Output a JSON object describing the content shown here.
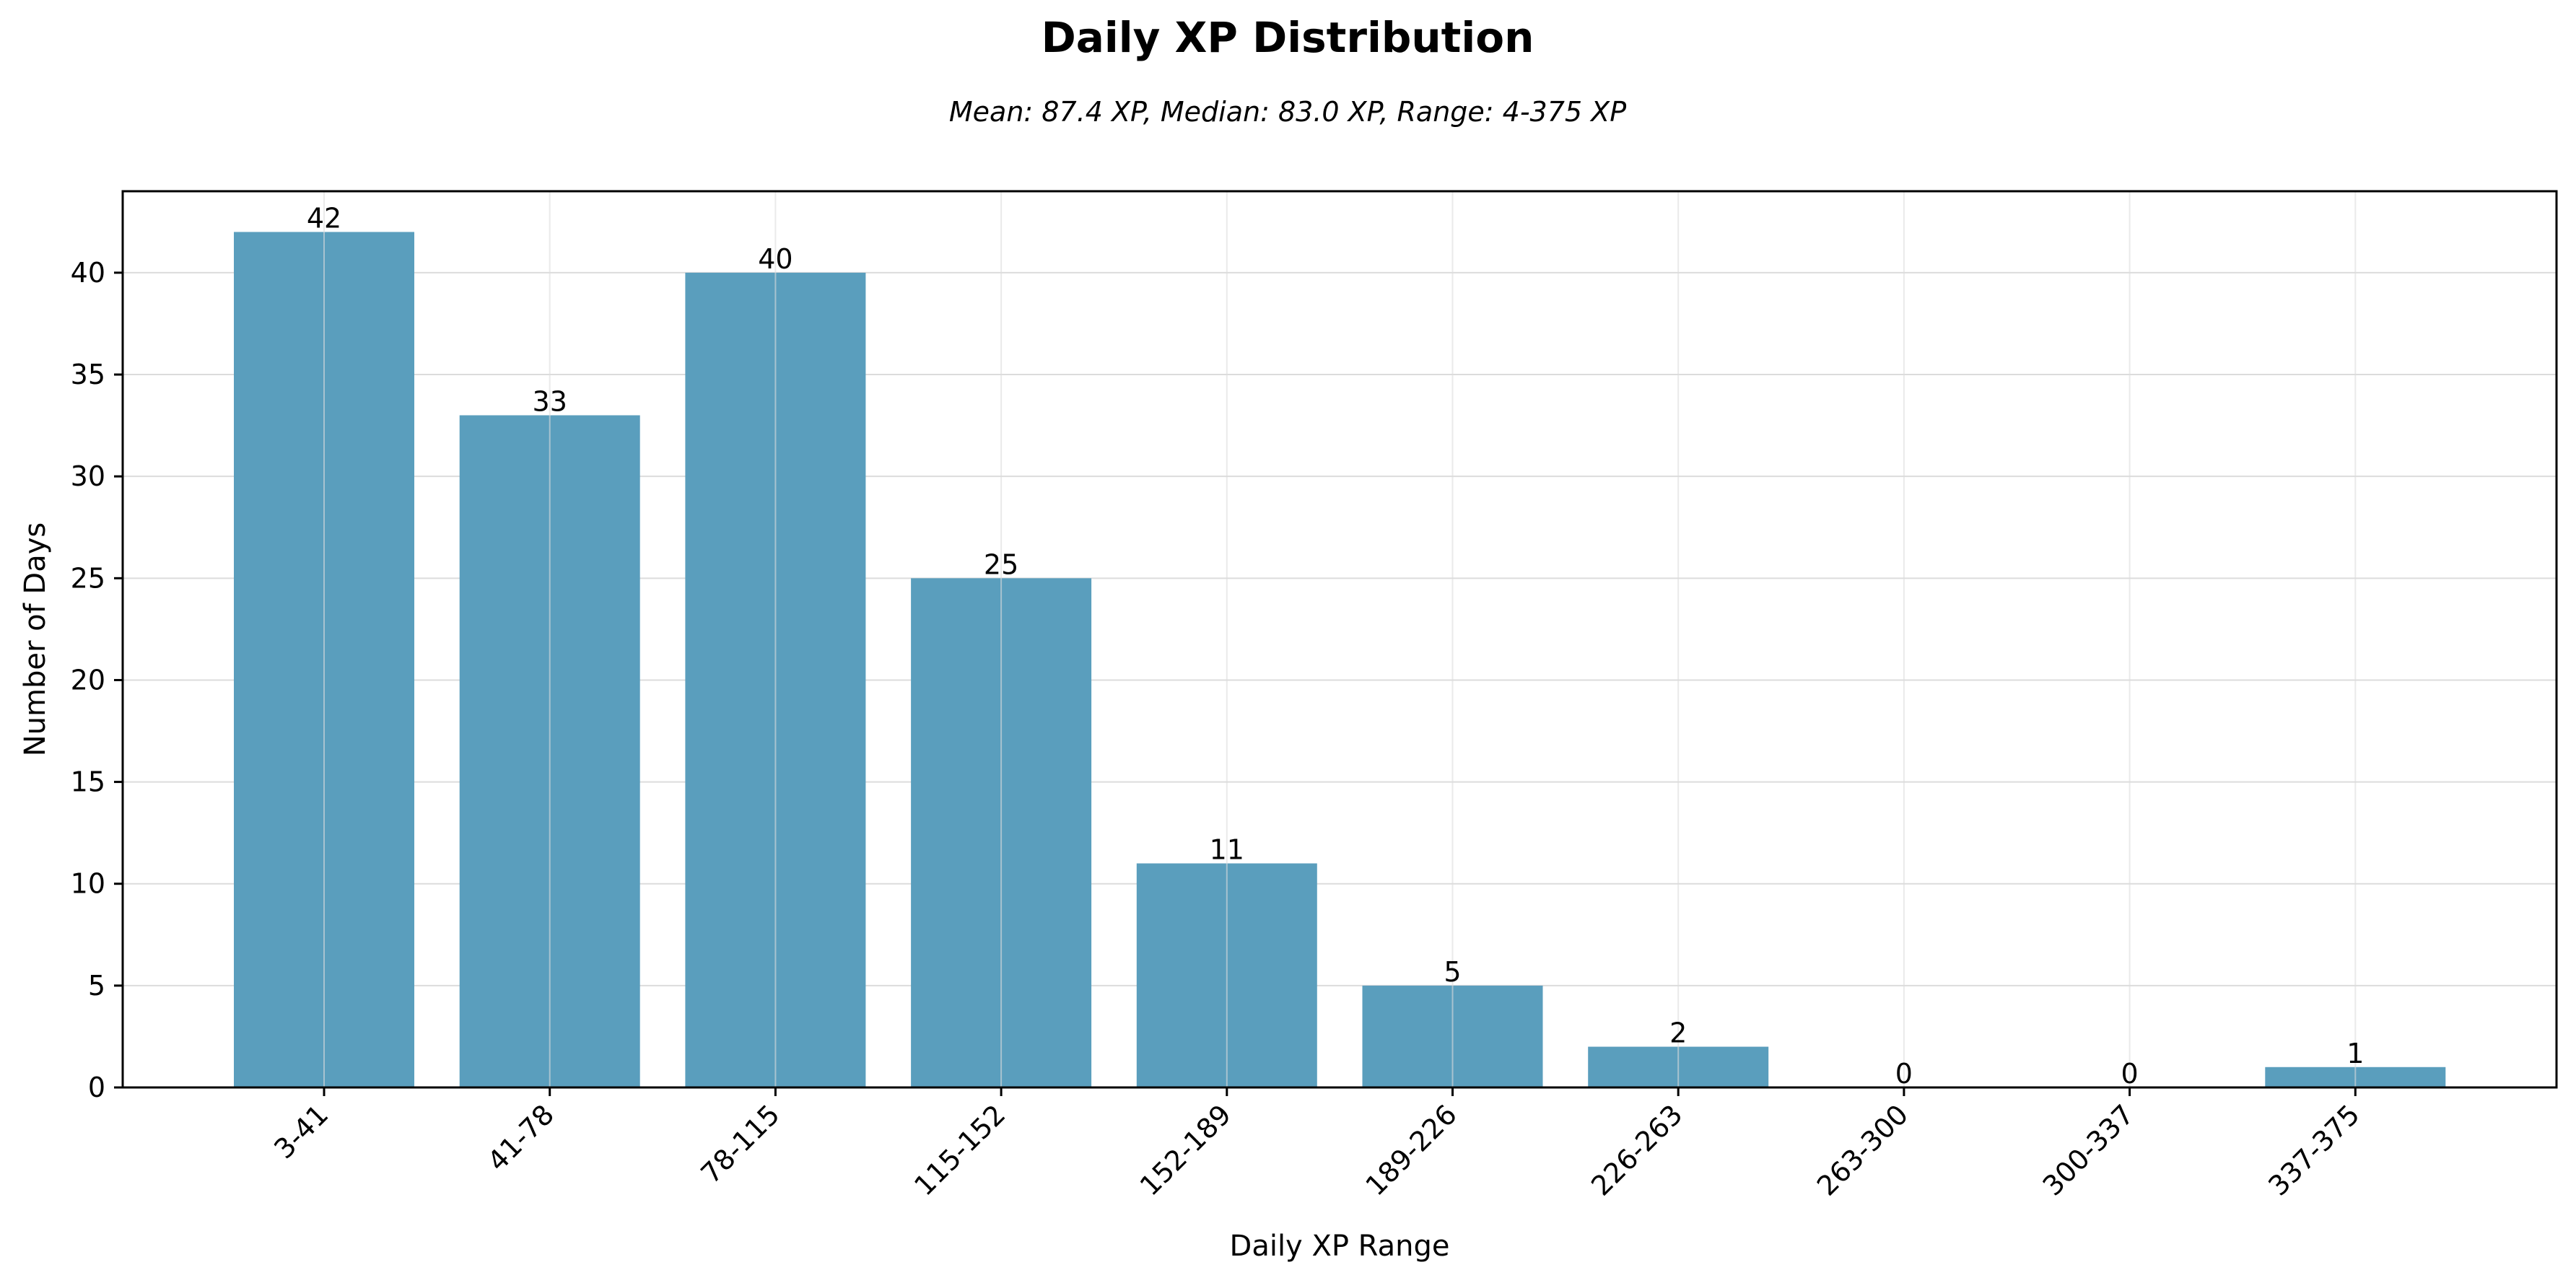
{
  "chart_data": {
    "type": "bar",
    "title": "Daily XP Distribution",
    "subtitle": "Mean: 87.4 XP, Median: 83.0 XP, Range: 4-375 XP",
    "xlabel": "Daily XP Range",
    "ylabel": "Number of Days",
    "categories": [
      "3-41",
      "41-78",
      "78-115",
      "115-152",
      "152-189",
      "189-226",
      "226-263",
      "263-300",
      "300-337",
      "337-375"
    ],
    "values": [
      42,
      33,
      40,
      25,
      11,
      5,
      2,
      0,
      0,
      1
    ],
    "ylim": [
      0,
      44
    ],
    "yticks": [
      0,
      5,
      10,
      15,
      20,
      25,
      30,
      35,
      40
    ],
    "grid": true,
    "bar_color": "#5a9ebd"
  }
}
